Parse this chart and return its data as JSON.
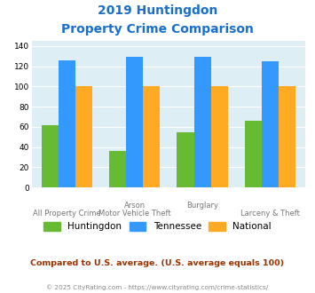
{
  "title_line1": "2019 Huntingdon",
  "title_line2": "Property Crime Comparison",
  "huntingdon": [
    62,
    36,
    55,
    66
  ],
  "tennessee": [
    126,
    129,
    129,
    125
  ],
  "national": [
    100,
    100,
    100,
    100
  ],
  "colors": {
    "huntingdon": "#66bb33",
    "tennessee": "#3399ff",
    "national": "#ffaa22"
  },
  "ylim": [
    0,
    145
  ],
  "yticks": [
    0,
    20,
    40,
    60,
    80,
    100,
    120,
    140
  ],
  "plot_bg": "#ddeef4",
  "title_color": "#1a6fcc",
  "subtitle": "Compared to U.S. average. (U.S. average equals 100)",
  "subtitle_color": "#993300",
  "footer": "© 2025 CityRating.com - https://www.cityrating.com/crime-statistics/",
  "footer_color": "#888888",
  "legend_labels": [
    "Huntingdon",
    "Tennessee",
    "National"
  ],
  "top_xlabels": [
    [
      "Arson",
      1
    ],
    [
      "Burglary",
      2
    ]
  ],
  "bottom_xlabels": [
    [
      "All Property Crime",
      0
    ],
    [
      "Motor Vehicle Theft",
      1
    ],
    [
      "Larceny & Theft",
      3
    ]
  ]
}
